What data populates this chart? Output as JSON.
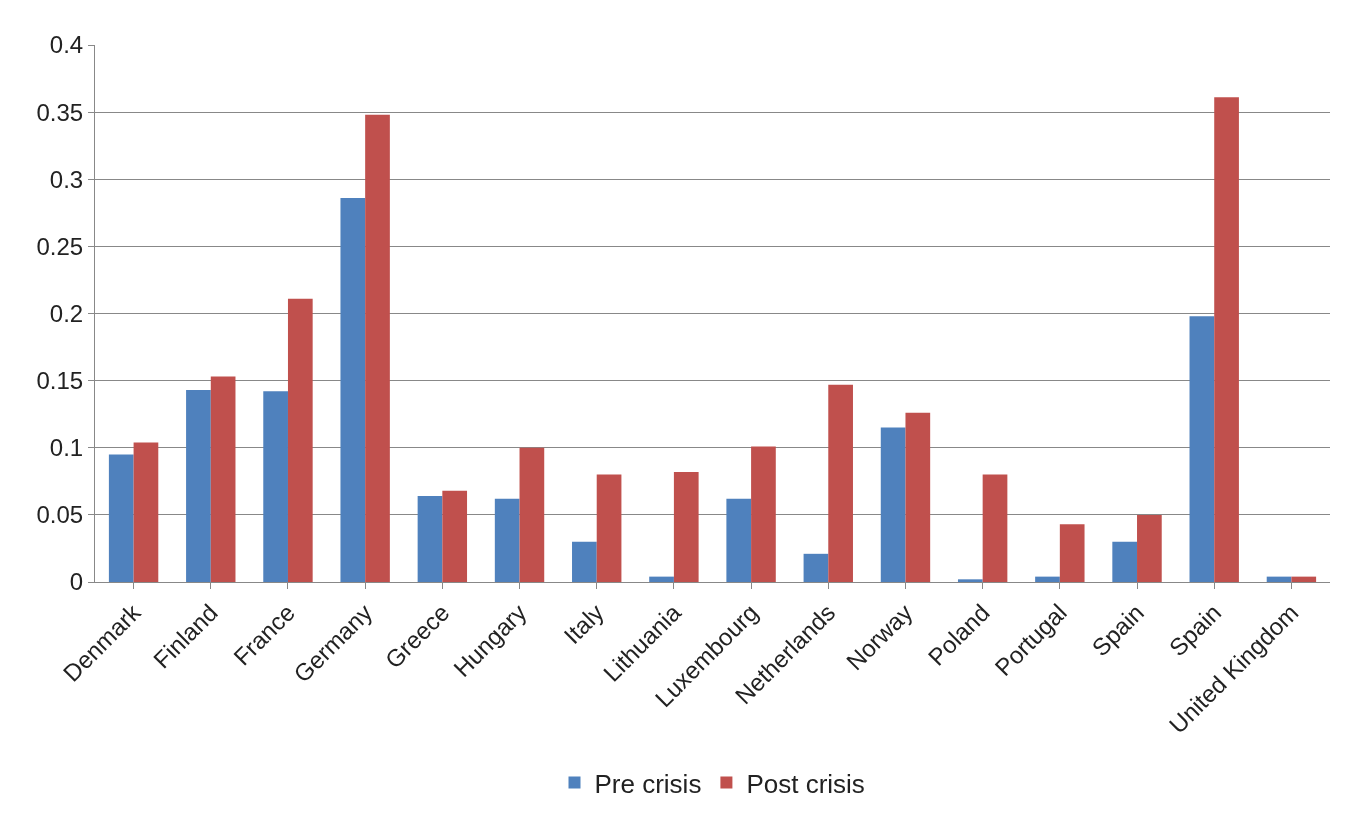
{
  "chart_data": {
    "type": "bar",
    "categories": [
      "Denmark",
      "Finland",
      "France",
      "Germany",
      "Greece",
      "Hungary",
      "Italy",
      "Lithuania",
      "Luxembourg",
      "Netherlands",
      "Norway",
      "Poland",
      "Portugal",
      "Spain",
      "Spain",
      "United Kingdom"
    ],
    "series": [
      {
        "name": "Pre crisis",
        "color": "#4f81bd",
        "values": [
          0.095,
          0.143,
          0.142,
          0.286,
          0.064,
          0.062,
          0.03,
          0.004,
          0.062,
          0.021,
          0.115,
          0.002,
          0.004,
          0.03,
          0.198,
          0.004
        ]
      },
      {
        "name": "Post crisis",
        "color": "#c0504d",
        "values": [
          0.104,
          0.153,
          0.211,
          0.348,
          0.068,
          0.1,
          0.08,
          0.082,
          0.101,
          0.147,
          0.126,
          0.08,
          0.043,
          0.05,
          0.361,
          0.004
        ]
      }
    ],
    "ylim": [
      0,
      0.4
    ],
    "yticks": [
      0,
      0.05,
      0.1,
      0.15,
      0.2,
      0.25,
      0.3,
      0.35,
      0.4
    ],
    "grid": "y",
    "legend": "bottom"
  }
}
